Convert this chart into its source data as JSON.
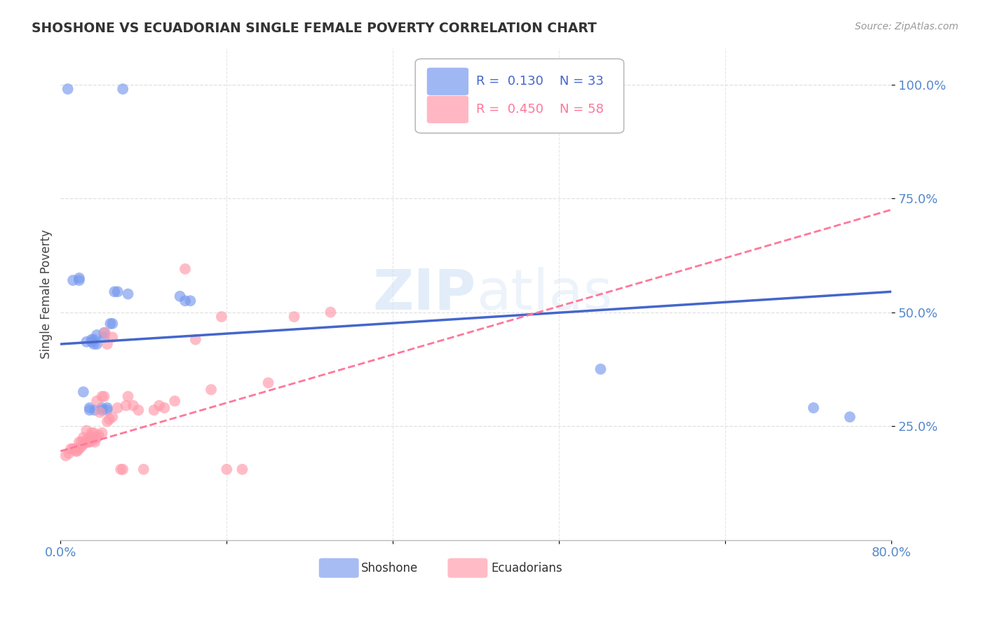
{
  "title": "SHOSHONE VS ECUADORIAN SINGLE FEMALE POVERTY CORRELATION CHART",
  "source": "Source: ZipAtlas.com",
  "ylabel": "Single Female Poverty",
  "xlim": [
    0.0,
    0.8
  ],
  "ylim": [
    0.0,
    1.08
  ],
  "watermark": "ZIPatlas",
  "shoshone_color": "#7799ee",
  "ecuadorian_color": "#ff99aa",
  "shoshone_line_color": "#4466cc",
  "ecuadorian_line_color": "#ff7799",
  "grid_color": "#dddddd",
  "shoshone_R": 0.13,
  "shoshone_N": 33,
  "ecuadorian_R": 0.45,
  "ecuadorian_N": 58,
  "shoshone_x": [
    0.007,
    0.012,
    0.018,
    0.018,
    0.022,
    0.025,
    0.028,
    0.028,
    0.03,
    0.03,
    0.032,
    0.032,
    0.033,
    0.035,
    0.035,
    0.04,
    0.04,
    0.042,
    0.042,
    0.045,
    0.045,
    0.048,
    0.05,
    0.052,
    0.055,
    0.06,
    0.065,
    0.115,
    0.12,
    0.125,
    0.52,
    0.725,
    0.76
  ],
  "shoshone_y": [
    0.99,
    0.57,
    0.575,
    0.57,
    0.325,
    0.435,
    0.285,
    0.29,
    0.435,
    0.44,
    0.43,
    0.44,
    0.285,
    0.43,
    0.45,
    0.285,
    0.29,
    0.445,
    0.455,
    0.285,
    0.29,
    0.475,
    0.475,
    0.545,
    0.545,
    0.99,
    0.54,
    0.535,
    0.525,
    0.525,
    0.375,
    0.29,
    0.27
  ],
  "ecuadorian_x": [
    0.005,
    0.008,
    0.01,
    0.012,
    0.014,
    0.015,
    0.016,
    0.018,
    0.018,
    0.02,
    0.02,
    0.022,
    0.022,
    0.025,
    0.025,
    0.025,
    0.027,
    0.028,
    0.028,
    0.03,
    0.03,
    0.032,
    0.032,
    0.033,
    0.035,
    0.035,
    0.037,
    0.038,
    0.04,
    0.04,
    0.042,
    0.043,
    0.045,
    0.045,
    0.047,
    0.05,
    0.05,
    0.055,
    0.058,
    0.06,
    0.063,
    0.065,
    0.07,
    0.075,
    0.08,
    0.09,
    0.095,
    0.1,
    0.11,
    0.12,
    0.13,
    0.145,
    0.155,
    0.16,
    0.175,
    0.2,
    0.225,
    0.26
  ],
  "ecuadorian_y": [
    0.185,
    0.19,
    0.2,
    0.2,
    0.2,
    0.195,
    0.195,
    0.2,
    0.215,
    0.205,
    0.215,
    0.21,
    0.225,
    0.215,
    0.22,
    0.24,
    0.215,
    0.215,
    0.225,
    0.225,
    0.235,
    0.22,
    0.235,
    0.215,
    0.225,
    0.305,
    0.23,
    0.28,
    0.235,
    0.315,
    0.315,
    0.455,
    0.26,
    0.43,
    0.265,
    0.27,
    0.445,
    0.29,
    0.155,
    0.155,
    0.295,
    0.315,
    0.295,
    0.285,
    0.155,
    0.285,
    0.295,
    0.29,
    0.305,
    0.595,
    0.44,
    0.33,
    0.49,
    0.155,
    0.155,
    0.345,
    0.49,
    0.5
  ]
}
